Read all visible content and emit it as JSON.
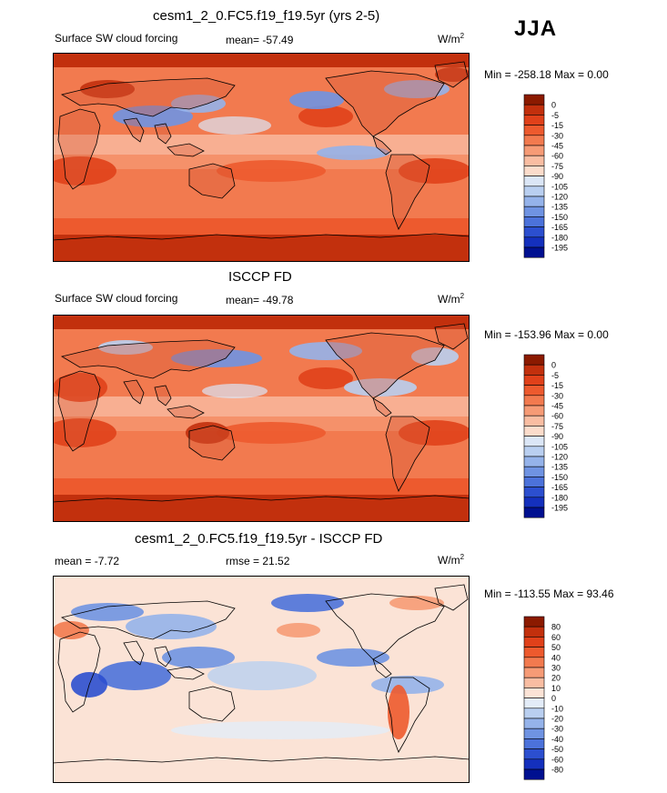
{
  "season": "JJA",
  "colors": {
    "ocean_base": "#ef6a44",
    "land": "#d65a36",
    "coast": "#000000"
  },
  "chart_data": [
    {
      "type": "heatmap",
      "title": "cesm1_2_0.FC5.f19_f19.5yr (yrs 2-5)",
      "left_label": "Surface SW cloud forcing",
      "center_label": "mean= -57.49",
      "units": "W/m",
      "units_sup": "2",
      "minmax": "Min = -258.18 Max =   0.00",
      "mean": -57.49,
      "min": -258.18,
      "max": 0.0,
      "colorbar": {
        "labels": [
          "0",
          "-5",
          "-15",
          "-30",
          "-45",
          "-60",
          "-75",
          "-90",
          "-105",
          "-120",
          "-135",
          "-150",
          "-165",
          "-180",
          "-195"
        ],
        "colors": [
          "#8b1a00",
          "#c2300d",
          "#e0411a",
          "#ed5a2e",
          "#f27a4f",
          "#f69b76",
          "#f9bda2",
          "#fbdccb",
          "#dbe6f6",
          "#b9cff0",
          "#95b3ea",
          "#6f93e2",
          "#4c72da",
          "#2c4fcf",
          "#1430bd",
          "#001090"
        ]
      }
    },
    {
      "type": "heatmap",
      "title": "ISCCP FD",
      "left_label": "Surface SW cloud forcing",
      "center_label": "mean= -49.78",
      "units": "W/m",
      "units_sup": "2",
      "minmax": "Min = -153.96 Max =   0.00",
      "mean": -49.78,
      "min": -153.96,
      "max": 0.0,
      "colorbar": {
        "labels": [
          "0",
          "-5",
          "-15",
          "-30",
          "-45",
          "-60",
          "-75",
          "-90",
          "-105",
          "-120",
          "-135",
          "-150",
          "-165",
          "-180",
          "-195"
        ],
        "colors": [
          "#8b1a00",
          "#c2300d",
          "#e0411a",
          "#ed5a2e",
          "#f27a4f",
          "#f69b76",
          "#f9bda2",
          "#fbdccb",
          "#dbe6f6",
          "#b9cff0",
          "#95b3ea",
          "#6f93e2",
          "#4c72da",
          "#2c4fcf",
          "#1430bd",
          "#001090"
        ]
      }
    },
    {
      "type": "heatmap",
      "title": "cesm1_2_0.FC5.f19_f19.5yr - ISCCP FD",
      "left_label": "mean =  -7.72",
      "center_label": "rmse =  21.52",
      "units": "W/m",
      "units_sup": "2",
      "minmax": "Min = -113.55 Max =  93.46",
      "mean": -7.72,
      "rmse": 21.52,
      "min": -113.55,
      "max": 93.46,
      "colorbar": {
        "labels": [
          "80",
          "60",
          "50",
          "40",
          "30",
          "20",
          "10",
          "0",
          "-10",
          "-20",
          "-30",
          "-40",
          "-50",
          "-60",
          "-80"
        ],
        "colors": [
          "#8b1a00",
          "#c2300d",
          "#e0411a",
          "#ed5a2e",
          "#f27a4f",
          "#f69b76",
          "#f9bda2",
          "#fbe3d6",
          "#e3ecf8",
          "#b9cff0",
          "#95b3ea",
          "#6f93e2",
          "#4c72da",
          "#2c4fcf",
          "#1430bd",
          "#001090"
        ]
      }
    }
  ]
}
